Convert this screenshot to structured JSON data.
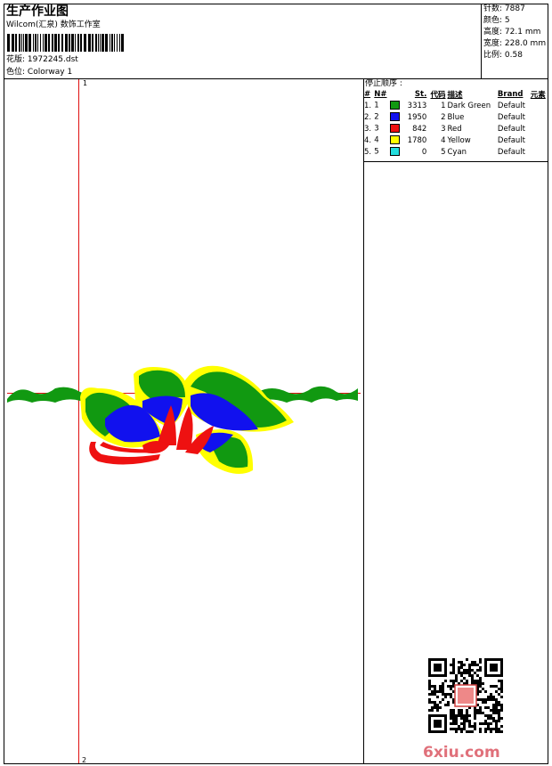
{
  "header": {
    "title": "生产作业图",
    "subtitle": "Wilcom(汇泉) 数饰工作室",
    "design_file": {
      "label": "花版:",
      "value": "1972245.dst"
    },
    "colorway": {
      "label": "色位:",
      "value": "Colorway 1"
    }
  },
  "info": [
    {
      "label": "针数:",
      "value": "7887"
    },
    {
      "label": "颜色:",
      "value": "5"
    },
    {
      "label": "高度:",
      "value": "72.1 mm"
    },
    {
      "label": "宽度:",
      "value": "228.0 mm"
    },
    {
      "label": "比例:",
      "value": "0.58"
    }
  ],
  "stop_sequence": {
    "title": "停止顺序 :",
    "columns": [
      "#",
      "N#",
      "St.",
      "代码",
      "描述",
      "Brand",
      "元素"
    ],
    "rows": [
      {
        "index": "1.",
        "n": 1,
        "color": "#119911",
        "stitches": 3313,
        "code": 1,
        "description": "Dark Green",
        "brand": "Default"
      },
      {
        "index": "2.",
        "n": 2,
        "color": "#1111ee",
        "stitches": 1950,
        "code": 2,
        "description": "Blue",
        "brand": "Default"
      },
      {
        "index": "3.",
        "n": 3,
        "color": "#ee1111",
        "stitches": 842,
        "code": 3,
        "description": "Red",
        "brand": "Default"
      },
      {
        "index": "4.",
        "n": 4,
        "color": "#ffff00",
        "stitches": 1780,
        "code": 4,
        "description": "Yellow",
        "brand": "Default"
      },
      {
        "index": "5.",
        "n": 5,
        "color": "#22dddd",
        "stitches": 0,
        "code": 5,
        "description": "Cyan",
        "brand": "Default"
      }
    ]
  },
  "design": {
    "start_label": "1",
    "end_label": "2"
  },
  "watermark": "6xiu.com"
}
